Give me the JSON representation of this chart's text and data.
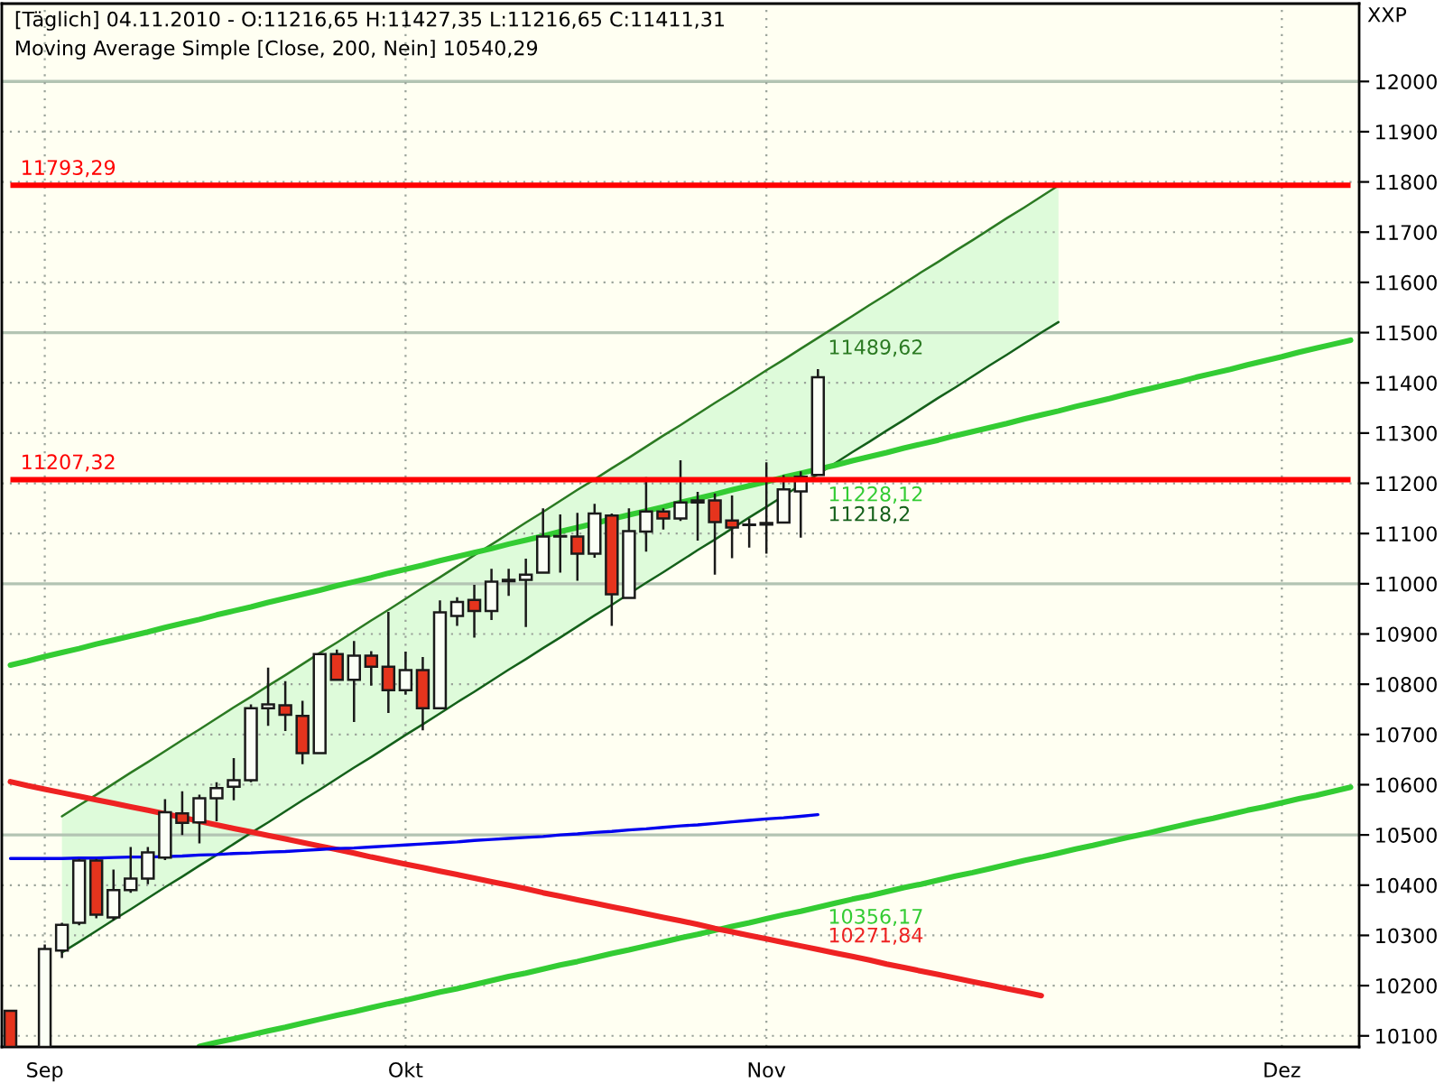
{
  "chart_data": {
    "type": "candlestick",
    "title": "[Täglich] 04.11.2010 - O:11216,65 H:11427,35 L:11216,65 C:11411,31",
    "subtitle": "Moving Average Simple [Close, 200, Nein] 10540,29",
    "ylabel": "XXP",
    "categories": [
      null,
      null,
      "Sep",
      null,
      null,
      null,
      null,
      null,
      null,
      null,
      null,
      null,
      null,
      null,
      null,
      null,
      null,
      null,
      null,
      null,
      null,
      null,
      null,
      "Okt",
      null,
      null,
      null,
      null,
      null,
      null,
      null,
      null,
      null,
      null,
      null,
      null,
      null,
      null,
      null,
      null,
      null,
      null,
      null,
      null,
      "Nov",
      null,
      null,
      null,
      null,
      null,
      null,
      null,
      null,
      null,
      null,
      null,
      null,
      null,
      null,
      null,
      null,
      null,
      null,
      null,
      null,
      null,
      null,
      null,
      null,
      null,
      null,
      null,
      null,
      null,
      "Dez",
      null,
      null,
      null,
      null
    ],
    "ylim": [
      10078,
      12155
    ],
    "yticks": [
      10100,
      10200,
      10300,
      10400,
      10500,
      10600,
      10700,
      10800,
      10900,
      11000,
      11100,
      11200,
      11300,
      11400,
      11500,
      11600,
      11700,
      11800,
      11900,
      12000
    ],
    "grid": true,
    "series": [
      {
        "type": "line",
        "color": "#2b7a22",
        "values": [
          null,
          null,
          null,
          10537,
          10559,
          10580,
          10602,
          10624,
          10645,
          10667,
          10689,
          10710,
          10732,
          10754,
          10775,
          10797,
          10818,
          10840,
          10862,
          10883,
          10905,
          10927,
          10948,
          10970,
          10992,
          11013,
          11035,
          11057,
          11078,
          11100,
          11122,
          11143,
          11165,
          11187,
          11208,
          11230,
          11251,
          11273,
          11295,
          11316,
          11338,
          11360,
          11381,
          11403,
          11425,
          11446,
          11468,
          11489.62,
          11511,
          11533,
          11555,
          11576,
          11598,
          11620,
          11641,
          11663,
          11684,
          11706,
          11728,
          11749,
          11771,
          11793,
          null,
          null,
          null,
          null,
          null,
          null,
          null,
          null,
          null,
          null,
          null,
          null,
          null,
          null,
          null,
          null,
          null
        ],
        "upper": [
          null,
          null,
          null,
          10537,
          10559,
          10580,
          10602,
          10624,
          10645,
          10667,
          10689,
          10710,
          10732,
          10754,
          10775,
          10797,
          10818,
          10840,
          10862,
          10883,
          10905,
          10927,
          10948,
          10970,
          10992,
          11013,
          11035,
          11057,
          11078,
          11100,
          11122,
          11143,
          11165,
          11187,
          11208,
          11230,
          11251,
          11273,
          11295,
          11316,
          11338,
          11360,
          11381,
          11403,
          11425,
          11446,
          11468,
          11489.62,
          11511,
          11533,
          11555,
          11576,
          11598,
          11620,
          11641,
          11663,
          11684,
          11706,
          11728,
          11749,
          11771,
          11793,
          null,
          null,
          null,
          null,
          null,
          null,
          null,
          null,
          null,
          null,
          null,
          null,
          null,
          null,
          null,
          null,
          null
        ],
        "lower": [
          null,
          null,
          null,
          10266,
          10287,
          10309,
          10331,
          10352,
          10374,
          10396,
          10417,
          10439,
          10460,
          10482,
          10504,
          10525,
          10547,
          10569,
          10590,
          10612,
          10634,
          10655,
          10677,
          10699,
          10720,
          10742,
          10764,
          10785,
          10807,
          10829,
          10850,
          10872,
          10893,
          10915,
          10937,
          10958,
          10980,
          11002,
          11023,
          11045,
          11067,
          11088,
          11110,
          11132,
          11153,
          11175,
          11197,
          11218.2,
          11240,
          11262,
          11283,
          11305,
          11326,
          11348,
          11370,
          11391,
          11413,
          11435,
          11456,
          11478,
          11500,
          11521,
          null,
          null,
          null,
          null,
          null,
          null,
          null,
          null,
          null,
          null,
          null,
          null,
          null,
          null,
          null,
          null,
          null
        ],
        "value_labels": [
          null,
          null,
          null,
          null,
          null,
          null,
          null,
          null,
          null,
          null,
          null,
          null,
          null,
          null,
          null,
          null,
          null,
          null,
          null,
          null,
          null,
          null,
          null,
          null,
          null,
          null,
          null,
          null,
          null,
          null,
          null,
          null,
          null,
          null,
          null,
          null,
          null,
          null,
          null,
          null,
          null,
          null,
          null,
          null,
          null,
          null,
          null,
          "11489,62",
          null,
          null,
          null,
          null,
          null,
          null,
          null,
          null,
          null,
          null,
          null,
          null,
          null,
          null,
          null,
          null,
          null,
          null,
          null,
          null,
          null,
          null,
          null,
          null,
          null,
          null,
          null,
          null,
          null,
          null,
          null
        ]
      },
      {
        "type": "line",
        "color": "#14601a",
        "values": [
          null,
          null,
          null,
          10266,
          10287,
          10309,
          10331,
          10352,
          10374,
          10396,
          10417,
          10439,
          10460,
          10482,
          10504,
          10525,
          10547,
          10569,
          10590,
          10612,
          10634,
          10655,
          10677,
          10699,
          10720,
          10742,
          10764,
          10785,
          10807,
          10829,
          10850,
          10872,
          10893,
          10915,
          10937,
          10958,
          10980,
          11002,
          11023,
          11045,
          11067,
          11088,
          11110,
          11132,
          11153,
          11175,
          11197,
          11218.2,
          11240,
          11262,
          11283,
          11305,
          11326,
          11348,
          11370,
          11391,
          11413,
          11435,
          11456,
          11478,
          11500,
          11521,
          null,
          null,
          null,
          null,
          null,
          null,
          null,
          null,
          null,
          null,
          null,
          null,
          null,
          null,
          null,
          null,
          null
        ],
        "value_labels": [
          null,
          null,
          null,
          null,
          null,
          null,
          null,
          null,
          null,
          null,
          null,
          null,
          null,
          null,
          null,
          null,
          null,
          null,
          null,
          null,
          null,
          null,
          null,
          null,
          null,
          null,
          null,
          null,
          null,
          null,
          null,
          null,
          null,
          null,
          null,
          null,
          null,
          null,
          null,
          null,
          null,
          null,
          null,
          null,
          null,
          null,
          null,
          "11218,2",
          null,
          null,
          null,
          null,
          null,
          null,
          null,
          null,
          null,
          null,
          null,
          null,
          null,
          null,
          null,
          null,
          null,
          null,
          null,
          null,
          null,
          null,
          null,
          null,
          null,
          null,
          null,
          null,
          null,
          null,
          null
        ]
      },
      {
        "type": "line",
        "color": "#33cc33",
        "values": [
          10838,
          10846,
          10855,
          10863,
          10871,
          10880,
          10888,
          10896,
          10904,
          10913,
          10921,
          10929,
          10938,
          10946,
          10954,
          10963,
          10971,
          10979,
          10987,
          10996,
          11004,
          11012,
          11021,
          11029,
          11037,
          11046,
          11054,
          11062,
          11070,
          11079,
          11087,
          11095,
          11104,
          11112,
          11120,
          11129,
          11137,
          11145,
          11153,
          11162,
          11170,
          11178,
          11187,
          11195,
          11203,
          11212,
          11220,
          11228.12,
          11236,
          11245,
          11253,
          11261,
          11270,
          11278,
          11286,
          11295,
          11303,
          11311,
          11319,
          11328,
          11336,
          11344,
          11353,
          11361,
          11369,
          11378,
          11386,
          11394,
          11402,
          11411,
          11419,
          11427,
          11436,
          11444,
          11452,
          11461,
          11469,
          11477,
          11485
        ],
        "value_labels": [
          null,
          null,
          null,
          null,
          null,
          null,
          null,
          null,
          null,
          null,
          null,
          null,
          null,
          null,
          null,
          null,
          null,
          null,
          null,
          null,
          null,
          null,
          null,
          null,
          null,
          null,
          null,
          null,
          null,
          null,
          null,
          null,
          null,
          null,
          null,
          null,
          null,
          null,
          null,
          null,
          null,
          null,
          null,
          null,
          null,
          null,
          null,
          "11228,12",
          null,
          null,
          null,
          null,
          null,
          null,
          null,
          null,
          null,
          null,
          null,
          null,
          null,
          null,
          null,
          null,
          null,
          null,
          null,
          null,
          null,
          null,
          null,
          null,
          null,
          null,
          null,
          null,
          null,
          null,
          null
        ]
      },
      {
        "type": "line",
        "color": "#33cc33",
        "values": [
          null,
          null,
          null,
          null,
          null,
          null,
          null,
          null,
          null,
          null,
          null,
          10079,
          10087,
          10094,
          10102,
          10110,
          10117,
          10125,
          10133,
          10141,
          10148,
          10156,
          10164,
          10171,
          10179,
          10187,
          10194,
          10202,
          10210,
          10218,
          10225,
          10233,
          10241,
          10248,
          10256,
          10264,
          10271,
          10279,
          10287,
          10295,
          10302,
          10310,
          10318,
          10325,
          10333,
          10341,
          10348,
          10356.17,
          10364,
          10372,
          10379,
          10387,
          10395,
          10402,
          10410,
          10418,
          10425,
          10433,
          10441,
          10449,
          10456,
          10464,
          10472,
          10479,
          10487,
          10495,
          10502,
          10510,
          10518,
          10526,
          10533,
          10541,
          10549,
          10556,
          10564,
          10572,
          10579,
          10587,
          10595
        ],
        "value_labels": [
          null,
          null,
          null,
          null,
          null,
          null,
          null,
          null,
          null,
          null,
          null,
          null,
          null,
          null,
          null,
          null,
          null,
          null,
          null,
          null,
          null,
          null,
          null,
          null,
          null,
          null,
          null,
          null,
          null,
          null,
          null,
          null,
          null,
          null,
          null,
          null,
          null,
          null,
          null,
          null,
          null,
          null,
          null,
          null,
          null,
          null,
          null,
          "10356,17",
          null,
          null,
          null,
          null,
          null,
          null,
          null,
          null,
          null,
          null,
          null,
          null,
          null,
          null,
          null,
          null,
          null,
          null,
          null,
          null,
          null,
          null,
          null,
          null,
          null,
          null,
          null,
          null,
          null,
          null,
          null
        ]
      },
      {
        "type": "line",
        "color": "#ee2222",
        "values": [
          10606,
          10598,
          10591,
          10584,
          10577,
          10570,
          10563,
          10556,
          10549,
          10542,
          10535,
          10527,
          10520,
          10513,
          10506,
          10499,
          10492,
          10485,
          10478,
          10471,
          10464,
          10456,
          10449,
          10442,
          10435,
          10428,
          10421,
          10414,
          10407,
          10400,
          10393,
          10385,
          10378,
          10371,
          10364,
          10357,
          10350,
          10343,
          10336,
          10329,
          10322,
          10314,
          10307,
          10300,
          10293,
          10286,
          10279,
          10271.84,
          10265,
          10258,
          10251,
          10243,
          10236,
          10229,
          10222,
          10215,
          10208,
          10201,
          10194,
          10187,
          10180,
          null,
          null,
          null,
          null,
          null,
          null,
          null,
          null,
          null,
          null,
          null,
          null,
          null,
          null,
          null,
          null,
          null,
          null
        ],
        "value_labels": [
          null,
          null,
          null,
          null,
          null,
          null,
          null,
          null,
          null,
          null,
          null,
          null,
          null,
          null,
          null,
          null,
          null,
          null,
          null,
          null,
          null,
          null,
          null,
          null,
          null,
          null,
          null,
          null,
          null,
          null,
          null,
          null,
          null,
          null,
          null,
          null,
          null,
          null,
          null,
          null,
          null,
          null,
          null,
          null,
          null,
          null,
          null,
          "10271,84",
          null,
          null,
          null,
          null,
          null,
          null,
          null,
          null,
          null,
          null,
          null,
          null,
          null,
          null,
          null,
          null,
          null,
          null,
          null,
          null,
          null,
          null,
          null,
          null,
          null,
          null,
          null,
          null,
          null,
          null,
          null
        ]
      },
      {
        "type": "line",
        "color": "#0000ee",
        "values": [
          10453,
          10453,
          10453,
          10453,
          10454,
          10454,
          10455,
          10456,
          10456,
          10457,
          10458,
          10460,
          10461,
          10463,
          10464,
          10466,
          10467,
          10469,
          10471,
          10473,
          10474,
          10476,
          10478,
          10480,
          10482,
          10484,
          10486,
          10489,
          10491,
          10493,
          10495,
          10497,
          10500,
          10502,
          10505,
          10507,
          10510,
          10512,
          10515,
          10518,
          10520,
          10523,
          10526,
          10529,
          10532,
          10534,
          10537,
          10540.29,
          null,
          null,
          null,
          null,
          null,
          null,
          null,
          null,
          null,
          null,
          null,
          null,
          null,
          null,
          null,
          null,
          null,
          null,
          null,
          null,
          null,
          null,
          null,
          null,
          null,
          null,
          null,
          null,
          null,
          null,
          null
        ]
      },
      {
        "type": "line",
        "color": "#ff0000",
        "values": [
          11793.29,
          11793.29,
          11793.29,
          11793.29,
          11793.29,
          11793.29,
          11793.29,
          11793.29,
          11793.29,
          11793.29,
          11793.29,
          11793.29,
          11793.29,
          11793.29,
          11793.29,
          11793.29,
          11793.29,
          11793.29,
          11793.29,
          11793.29,
          11793.29,
          11793.29,
          11793.29,
          11793.29,
          11793.29,
          11793.29,
          11793.29,
          11793.29,
          11793.29,
          11793.29,
          11793.29,
          11793.29,
          11793.29,
          11793.29,
          11793.29,
          11793.29,
          11793.29,
          11793.29,
          11793.29,
          11793.29,
          11793.29,
          11793.29,
          11793.29,
          11793.29,
          11793.29,
          11793.29,
          11793.29,
          11793.29,
          11793.29,
          11793.29,
          11793.29,
          11793.29,
          11793.29,
          11793.29,
          11793.29,
          11793.29,
          11793.29,
          11793.29,
          11793.29,
          11793.29,
          11793.29,
          11793.29,
          11793.29,
          11793.29,
          11793.29,
          11793.29,
          11793.29,
          11793.29,
          11793.29,
          11793.29,
          11793.29,
          11793.29,
          11793.29,
          11793.29,
          11793.29,
          11793.29,
          11793.29,
          11793.29,
          11793.29
        ],
        "value_labels": [
          "11793,29",
          null,
          null,
          null,
          null,
          null,
          null,
          null,
          null,
          null,
          null,
          null,
          null,
          null,
          null,
          null,
          null,
          null,
          null,
          null,
          null,
          null,
          null,
          null,
          null,
          null,
          null,
          null,
          null,
          null,
          null,
          null,
          null,
          null,
          null,
          null,
          null,
          null,
          null,
          null,
          null,
          null,
          null,
          null,
          null,
          null,
          null,
          null,
          null,
          null,
          null,
          null,
          null,
          null,
          null,
          null,
          null,
          null,
          null,
          null,
          null,
          null,
          null,
          null,
          null,
          null,
          null,
          null,
          null,
          null,
          null,
          null,
          null,
          null,
          null,
          null,
          null,
          null,
          null
        ]
      },
      {
        "type": "line",
        "color": "#ff0000",
        "values": [
          11207.32,
          11207.32,
          11207.32,
          11207.32,
          11207.32,
          11207.32,
          11207.32,
          11207.32,
          11207.32,
          11207.32,
          11207.32,
          11207.32,
          11207.32,
          11207.32,
          11207.32,
          11207.32,
          11207.32,
          11207.32,
          11207.32,
          11207.32,
          11207.32,
          11207.32,
          11207.32,
          11207.32,
          11207.32,
          11207.32,
          11207.32,
          11207.32,
          11207.32,
          11207.32,
          11207.32,
          11207.32,
          11207.32,
          11207.32,
          11207.32,
          11207.32,
          11207.32,
          11207.32,
          11207.32,
          11207.32,
          11207.32,
          11207.32,
          11207.32,
          11207.32,
          11207.32,
          11207.32,
          11207.32,
          11207.32,
          11207.32,
          11207.32,
          11207.32,
          11207.32,
          11207.32,
          11207.32,
          11207.32,
          11207.32,
          11207.32,
          11207.32,
          11207.32,
          11207.32,
          11207.32,
          11207.32,
          11207.32,
          11207.32,
          11207.32,
          11207.32,
          11207.32,
          11207.32,
          11207.32,
          11207.32,
          11207.32,
          11207.32,
          11207.32,
          11207.32,
          11207.32,
          11207.32,
          11207.32,
          11207.32,
          11207.32
        ],
        "value_labels": [
          "11207,32",
          null,
          null,
          null,
          null,
          null,
          null,
          null,
          null,
          null,
          null,
          null,
          null,
          null,
          null,
          null,
          null,
          null,
          null,
          null,
          null,
          null,
          null,
          null,
          null,
          null,
          null,
          null,
          null,
          null,
          null,
          null,
          null,
          null,
          null,
          null,
          null,
          null,
          null,
          null,
          null,
          null,
          null,
          null,
          null,
          null,
          null,
          null,
          null,
          null,
          null,
          null,
          null,
          null,
          null,
          null,
          null,
          null,
          null,
          null,
          null,
          null,
          null,
          null,
          null,
          null,
          null,
          null,
          null,
          null,
          null,
          null,
          null,
          null,
          null,
          null,
          null,
          null,
          null
        ]
      },
      {
        "ohlc": [
          [
            10150,
            10150,
            10078,
            10078
          ],
          null,
          [
            10078,
            10282,
            10078,
            10273
          ],
          [
            10270,
            10325,
            10255,
            10321
          ],
          [
            10325,
            10452,
            10320,
            10449
          ],
          [
            10449,
            10452,
            10334,
            10341
          ],
          [
            10336,
            10431,
            10330,
            10390
          ],
          [
            10390,
            10476,
            10385,
            10413
          ],
          [
            10413,
            10476,
            10402,
            10465
          ],
          [
            10455,
            10571,
            10450,
            10545
          ],
          [
            10543,
            10587,
            10500,
            10524
          ],
          [
            10525,
            10580,
            10483,
            10573
          ],
          [
            10573,
            10605,
            10527,
            10593
          ],
          [
            10596,
            10653,
            10569,
            10609
          ],
          [
            10609,
            10760,
            10605,
            10752
          ],
          [
            10752,
            10833,
            10717,
            10760
          ],
          [
            10758,
            10806,
            10707,
            10739
          ],
          [
            10737,
            10767,
            10641,
            10663
          ],
          [
            10663,
            10862,
            10663,
            10860
          ],
          [
            10860,
            10869,
            10809,
            10809
          ],
          [
            10809,
            10886,
            10725,
            10857
          ],
          [
            10857,
            10866,
            10797,
            10835
          ],
          [
            10835,
            10944,
            10743,
            10788
          ],
          [
            10788,
            10865,
            10779,
            10828
          ],
          [
            10828,
            10854,
            10708,
            10752
          ],
          [
            10752,
            10967,
            10752,
            10943
          ],
          [
            10936,
            10973,
            10916,
            10964
          ],
          [
            10968,
            10998,
            10893,
            10946
          ],
          [
            10946,
            11030,
            10928,
            11004
          ],
          [
            11005,
            11030,
            10976,
            11008
          ],
          [
            11008,
            11050,
            10914,
            11018
          ],
          [
            11022,
            11150,
            11020,
            11094
          ],
          [
            11094,
            11138,
            11022,
            11095
          ],
          [
            11094,
            11141,
            11006,
            11060
          ],
          [
            11060,
            11159,
            11052,
            11140
          ],
          [
            11136,
            11140,
            10916,
            10979
          ],
          [
            10972,
            11150,
            10970,
            11105
          ],
          [
            11104,
            11212,
            11064,
            11144
          ],
          [
            11144,
            11150,
            11108,
            11130
          ],
          [
            11130,
            11246,
            11125,
            11162
          ],
          [
            11162,
            11183,
            11086,
            11166
          ],
          [
            11166,
            11180,
            11018,
            11123
          ],
          [
            11126,
            11176,
            11051,
            11112
          ],
          [
            11118,
            11130,
            11072,
            11117
          ],
          [
            11118,
            11242,
            11060,
            11121
          ],
          [
            11122,
            11216,
            11120,
            11188
          ],
          [
            11184,
            11224,
            11092,
            11213
          ],
          [
            11216.65,
            11427.35,
            11216.65,
            11411.31
          ],
          null,
          null,
          null,
          null,
          null,
          null,
          null,
          null,
          null,
          null,
          null,
          null,
          null,
          null,
          null,
          null,
          null,
          null,
          null,
          null,
          null,
          null,
          null,
          null,
          null,
          null,
          null,
          null,
          null,
          null,
          null
        ],
        "colors": [
          "#e5341d",
          null,
          "#fbfff6",
          "#fbfff6",
          "#fbfff6",
          "#e5341d",
          "#fbfff6",
          "#fbfff6",
          "#fbfff6",
          "#fbfff6",
          "#e5341d",
          "#fbfff6",
          "#fbfff6",
          "#fbfff6",
          "#fbfff6",
          "#fbfff6",
          "#e5341d",
          "#e5341d",
          "#fbfff6",
          "#e5341d",
          "#fbfff6",
          "#e5341d",
          "#e5341d",
          "#fbfff6",
          "#e5341d",
          "#fbfff6",
          "#fbfff6",
          "#e5341d",
          "#fbfff6",
          "#fbfff6",
          "#fbfff6",
          "#fbfff6",
          "#fbfff6",
          "#e5341d",
          "#fbfff6",
          "#e5341d",
          "#fbfff6",
          "#fbfff6",
          "#e5341d",
          "#fbfff6",
          "#fbfff6",
          "#e5341d",
          "#e5341d",
          "#e5341d",
          "#fbfff6",
          "#fbfff6",
          "#fbfff6",
          "#fbfff6",
          null,
          null,
          null,
          null,
          null,
          null,
          null,
          null,
          null,
          null,
          null,
          null,
          null,
          null,
          null,
          null,
          null,
          null,
          null,
          null,
          null,
          null,
          null,
          null,
          null,
          null,
          null,
          null,
          null,
          null,
          null
        ]
      }
    ]
  }
}
